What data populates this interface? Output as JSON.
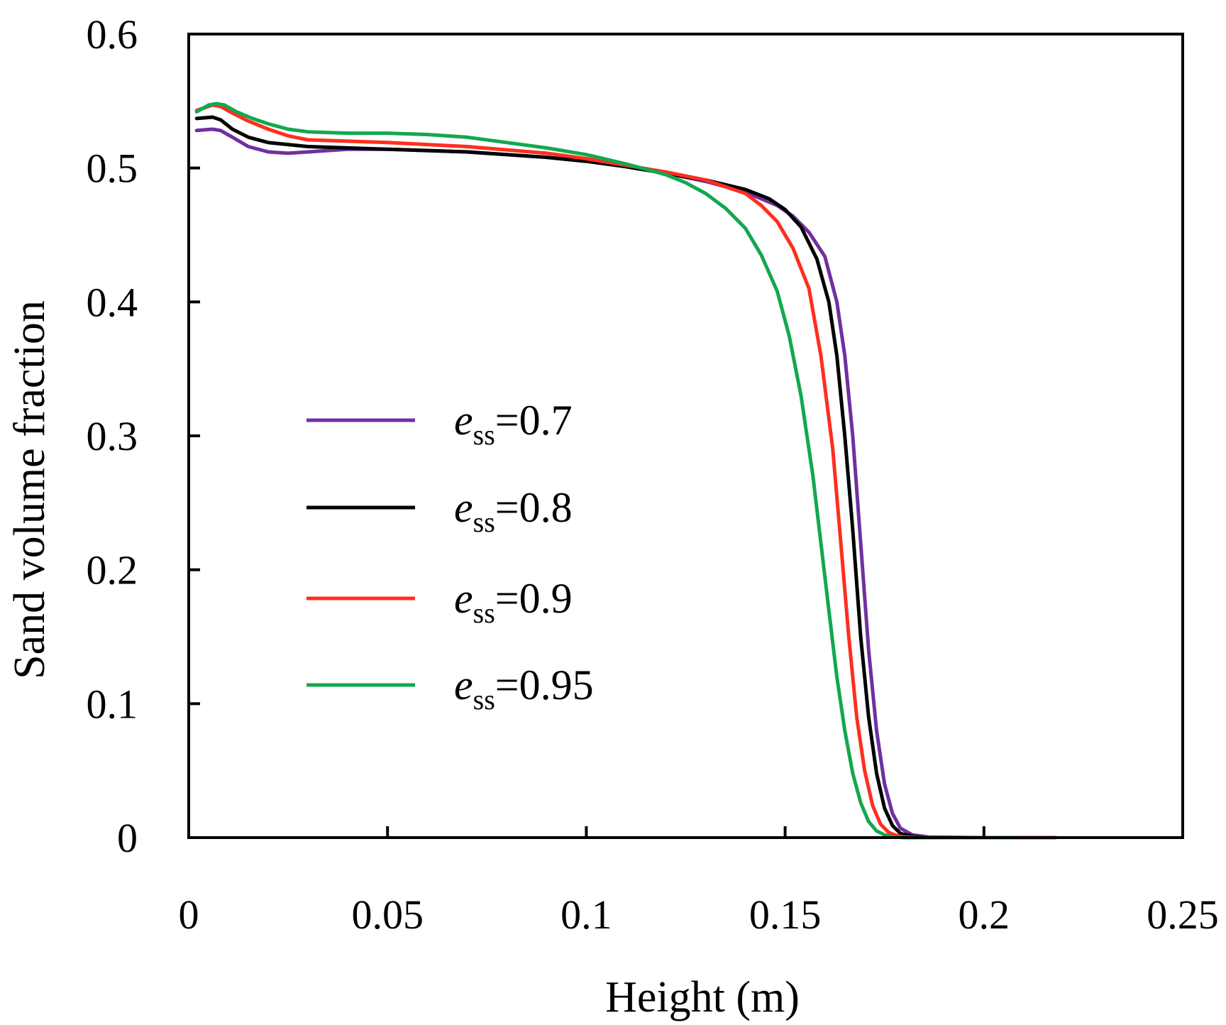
{
  "chart_data": {
    "type": "line",
    "title": "",
    "xlabel": "Height (m)",
    "ylabel": "Sand volume fraction",
    "xlim": [
      0,
      0.25
    ],
    "ylim": [
      0,
      0.6
    ],
    "xticks": [
      0,
      0.05,
      0.1,
      0.15,
      0.2,
      0.25
    ],
    "xtick_labels": [
      "0",
      "0.05",
      "0.1",
      "0.15",
      "0.2",
      "0.25"
    ],
    "yticks": [
      0,
      0.1,
      0.2,
      0.3,
      0.4,
      0.5,
      0.6
    ],
    "ytick_labels": [
      "0",
      "0.1",
      "0.2",
      "0.3",
      "0.4",
      "0.5",
      "0.6"
    ],
    "grid": false,
    "legend_position": "center-left",
    "series": [
      {
        "name": "e_ss=0.7",
        "label_main": "e",
        "label_sub": "ss",
        "label_value": "=0.7",
        "color": "#7030a0",
        "x": [
          0.002,
          0.006,
          0.008,
          0.011,
          0.015,
          0.02,
          0.025,
          0.03,
          0.04,
          0.05,
          0.07,
          0.09,
          0.1,
          0.11,
          0.12,
          0.13,
          0.14,
          0.148,
          0.152,
          0.156,
          0.16,
          0.163,
          0.165,
          0.167,
          0.169,
          0.171,
          0.173,
          0.175,
          0.177,
          0.179,
          0.182,
          0.186,
          0.2,
          0.218
        ],
        "y": [
          0.528,
          0.529,
          0.528,
          0.523,
          0.516,
          0.512,
          0.511,
          0.512,
          0.514,
          0.514,
          0.512,
          0.508,
          0.505,
          0.501,
          0.496,
          0.49,
          0.482,
          0.472,
          0.464,
          0.452,
          0.434,
          0.4,
          0.36,
          0.3,
          0.22,
          0.14,
          0.08,
          0.04,
          0.018,
          0.007,
          0.002,
          0.0005,
          0.0,
          0.0
        ]
      },
      {
        "name": "e_ss=0.8",
        "label_main": "e",
        "label_sub": "ss",
        "label_value": "=0.8",
        "color": "#000000",
        "x": [
          0.002,
          0.006,
          0.008,
          0.011,
          0.015,
          0.02,
          0.03,
          0.04,
          0.05,
          0.07,
          0.09,
          0.1,
          0.11,
          0.12,
          0.13,
          0.14,
          0.146,
          0.15,
          0.154,
          0.158,
          0.161,
          0.163,
          0.165,
          0.167,
          0.169,
          0.171,
          0.173,
          0.175,
          0.177,
          0.179,
          0.182,
          0.186,
          0.2,
          0.218
        ],
        "y": [
          0.537,
          0.538,
          0.536,
          0.529,
          0.523,
          0.519,
          0.516,
          0.515,
          0.514,
          0.512,
          0.508,
          0.505,
          0.501,
          0.496,
          0.491,
          0.484,
          0.477,
          0.469,
          0.456,
          0.432,
          0.4,
          0.36,
          0.3,
          0.23,
          0.15,
          0.09,
          0.048,
          0.022,
          0.009,
          0.003,
          0.001,
          0.0,
          0.0,
          0.0
        ]
      },
      {
        "name": "e_ss=0.9",
        "label_main": "e",
        "label_sub": "ss",
        "label_value": "=0.9",
        "color": "#ff2e1f",
        "x": [
          0.002,
          0.006,
          0.008,
          0.011,
          0.015,
          0.02,
          0.025,
          0.03,
          0.04,
          0.05,
          0.07,
          0.09,
          0.1,
          0.11,
          0.12,
          0.13,
          0.14,
          0.144,
          0.148,
          0.152,
          0.156,
          0.159,
          0.162,
          0.164,
          0.166,
          0.168,
          0.17,
          0.172,
          0.174,
          0.176,
          0.178,
          0.18,
          0.184,
          0.2,
          0.218
        ],
        "y": [
          0.543,
          0.547,
          0.546,
          0.541,
          0.535,
          0.529,
          0.524,
          0.521,
          0.52,
          0.519,
          0.516,
          0.511,
          0.507,
          0.502,
          0.497,
          0.491,
          0.481,
          0.472,
          0.46,
          0.44,
          0.41,
          0.36,
          0.29,
          0.22,
          0.15,
          0.09,
          0.05,
          0.024,
          0.01,
          0.004,
          0.0015,
          0.0005,
          0.0,
          0.0,
          0.0
        ]
      },
      {
        "name": "e_ss=0.95",
        "label_main": "e",
        "label_sub": "ss",
        "label_value": "=0.95",
        "color": "#12a84e",
        "x": [
          0.002,
          0.005,
          0.007,
          0.009,
          0.012,
          0.016,
          0.02,
          0.025,
          0.03,
          0.04,
          0.05,
          0.06,
          0.07,
          0.08,
          0.09,
          0.1,
          0.11,
          0.12,
          0.125,
          0.13,
          0.135,
          0.14,
          0.144,
          0.148,
          0.151,
          0.154,
          0.157,
          0.159,
          0.161,
          0.163,
          0.165,
          0.167,
          0.169,
          0.171,
          0.173,
          0.175,
          0.177,
          0.18,
          0.19,
          0.208
        ],
        "y": [
          0.542,
          0.547,
          0.548,
          0.547,
          0.542,
          0.537,
          0.533,
          0.529,
          0.527,
          0.526,
          0.526,
          0.525,
          0.523,
          0.519,
          0.515,
          0.51,
          0.503,
          0.495,
          0.489,
          0.481,
          0.47,
          0.455,
          0.435,
          0.408,
          0.375,
          0.33,
          0.27,
          0.22,
          0.17,
          0.12,
          0.08,
          0.048,
          0.026,
          0.012,
          0.005,
          0.002,
          0.0005,
          0.0,
          0.0,
          0.0
        ]
      }
    ]
  }
}
